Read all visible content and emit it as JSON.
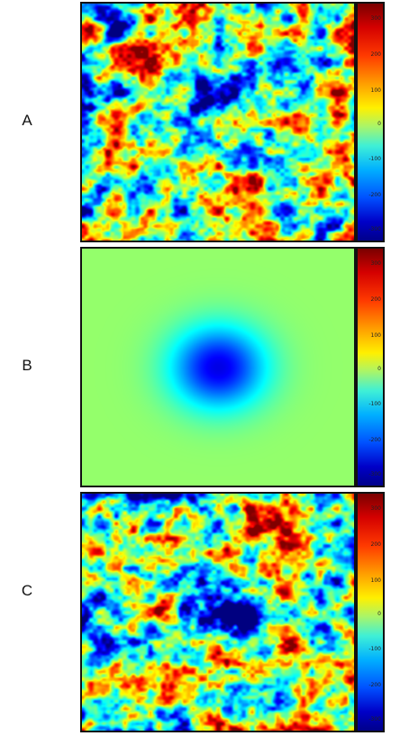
{
  "panels": [
    {
      "label": "A",
      "pattern": "noise"
    },
    {
      "label": "B",
      "pattern": "radial"
    },
    {
      "label": "C",
      "pattern": "noise"
    }
  ],
  "colorbar_ticks": [
    "300",
    "200",
    "100",
    "0",
    "-100",
    "-200",
    "-300"
  ],
  "colormap": "jet"
}
